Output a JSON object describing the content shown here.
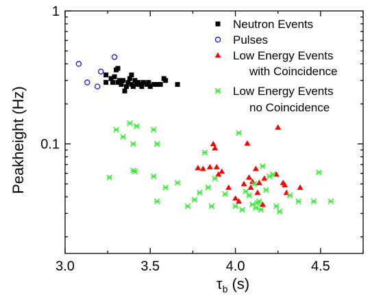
{
  "chart_data": {
    "type": "scatter",
    "xlabel": "τ",
    "xlabel_sub": "b",
    "xlabel_unit": " (s)",
    "ylabel": "Peakheight (Hz)",
    "x_scale": "linear",
    "y_scale": "log",
    "xlim": [
      3.0,
      4.75
    ],
    "ylim": [
      0.015,
      1.0
    ],
    "x_ticks": [
      3.0,
      3.5,
      4.0,
      4.5
    ],
    "x_tick_labels": [
      "3.0",
      "3.5",
      "4.0",
      "4.5"
    ],
    "y_ticks": [
      0.1,
      1.0
    ],
    "y_tick_labels": [
      "0.1",
      "1"
    ],
    "grid": false,
    "legend_position": "top-right",
    "series": [
      {
        "name": "Neutron Events",
        "marker": "square",
        "color": "#000000",
        "points": [
          [
            3.24,
            0.33
          ],
          [
            3.24,
            0.29
          ],
          [
            3.27,
            0.31
          ],
          [
            3.28,
            0.29
          ],
          [
            3.29,
            0.32
          ],
          [
            3.3,
            0.36
          ],
          [
            3.31,
            0.37
          ],
          [
            3.31,
            0.29
          ],
          [
            3.32,
            0.3
          ],
          [
            3.33,
            0.28
          ],
          [
            3.34,
            0.3
          ],
          [
            3.35,
            0.25
          ],
          [
            3.36,
            0.27
          ],
          [
            3.37,
            0.29
          ],
          [
            3.38,
            0.31
          ],
          [
            3.39,
            0.33
          ],
          [
            3.39,
            0.28
          ],
          [
            3.4,
            0.27
          ],
          [
            3.41,
            0.3
          ],
          [
            3.42,
            0.28
          ],
          [
            3.43,
            0.29
          ],
          [
            3.44,
            0.28
          ],
          [
            3.45,
            0.27
          ],
          [
            3.46,
            0.29
          ],
          [
            3.48,
            0.28
          ],
          [
            3.49,
            0.29
          ],
          [
            3.5,
            0.27
          ],
          [
            3.52,
            0.28
          ],
          [
            3.54,
            0.28
          ],
          [
            3.56,
            0.28
          ],
          [
            3.58,
            0.31
          ],
          [
            3.59,
            0.3
          ],
          [
            3.66,
            0.28
          ]
        ]
      },
      {
        "name": "Pulses",
        "marker": "circle-open",
        "color": "#0000ff",
        "points": [
          [
            3.08,
            0.4
          ],
          [
            3.13,
            0.29
          ],
          [
            3.19,
            0.27
          ],
          [
            3.21,
            0.35
          ],
          [
            3.29,
            0.45
          ]
        ]
      },
      {
        "name": "Low Energy Events",
        "name_line2": "with Coincidence",
        "marker": "triangle",
        "color": "#ff0000",
        "points": [
          [
            3.87,
            0.1
          ],
          [
            3.88,
            0.093
          ],
          [
            3.78,
            0.066
          ],
          [
            3.81,
            0.065
          ],
          [
            3.85,
            0.067
          ],
          [
            3.89,
            0.067
          ],
          [
            3.9,
            0.059
          ],
          [
            3.92,
            0.062
          ],
          [
            3.96,
            0.047
          ],
          [
            4.0,
            0.039
          ],
          [
            4.02,
            0.037
          ],
          [
            4.05,
            0.05
          ],
          [
            4.07,
            0.101
          ],
          [
            4.08,
            0.056
          ],
          [
            4.09,
            0.047
          ],
          [
            4.1,
            0.052
          ],
          [
            4.12,
            0.065
          ],
          [
            4.13,
            0.043
          ],
          [
            4.14,
            0.051
          ],
          [
            4.16,
            0.035
          ],
          [
            4.17,
            0.055
          ],
          [
            4.24,
            0.059
          ],
          [
            4.25,
            0.133
          ],
          [
            4.28,
            0.051
          ],
          [
            4.29,
            0.049
          ],
          [
            4.3,
            0.043
          ],
          [
            4.38,
            0.047
          ]
        ]
      },
      {
        "name": "Low Energy Events",
        "name_line2": "no Coincidence",
        "marker": "x-star",
        "color": "#33ee33",
        "points": [
          [
            3.26,
            0.056
          ],
          [
            3.3,
            0.128
          ],
          [
            3.34,
            0.113
          ],
          [
            3.38,
            0.143
          ],
          [
            3.4,
            0.1
          ],
          [
            3.41,
            0.062
          ],
          [
            3.4,
            0.063
          ],
          [
            3.42,
            0.136
          ],
          [
            3.52,
            0.128
          ],
          [
            3.52,
            0.057
          ],
          [
            3.54,
            0.037
          ],
          [
            3.54,
            0.1
          ],
          [
            3.59,
            0.047
          ],
          [
            3.66,
            0.051
          ],
          [
            3.72,
            0.034
          ],
          [
            3.76,
            0.038
          ],
          [
            3.79,
            0.043
          ],
          [
            3.82,
            0.086
          ],
          [
            3.84,
            0.047
          ],
          [
            3.86,
            0.034
          ],
          [
            3.88,
            0.055
          ],
          [
            3.94,
            0.042
          ],
          [
            4.0,
            0.034
          ],
          [
            4.02,
            0.121
          ],
          [
            4.04,
            0.032
          ],
          [
            4.06,
            0.044
          ],
          [
            4.08,
            0.041
          ],
          [
            4.1,
            0.035
          ],
          [
            4.11,
            0.05
          ],
          [
            4.12,
            0.033
          ],
          [
            4.13,
            0.036
          ],
          [
            4.14,
            0.037
          ],
          [
            4.15,
            0.032
          ],
          [
            4.16,
            0.068
          ],
          [
            4.18,
            0.045
          ],
          [
            4.2,
            0.057
          ],
          [
            4.22,
            0.059
          ],
          [
            4.24,
            0.034
          ],
          [
            4.26,
            0.031
          ],
          [
            4.32,
            0.041
          ],
          [
            4.37,
            0.037
          ],
          [
            4.46,
            0.037
          ],
          [
            4.49,
            0.061
          ],
          [
            4.56,
            0.037
          ]
        ]
      }
    ]
  }
}
